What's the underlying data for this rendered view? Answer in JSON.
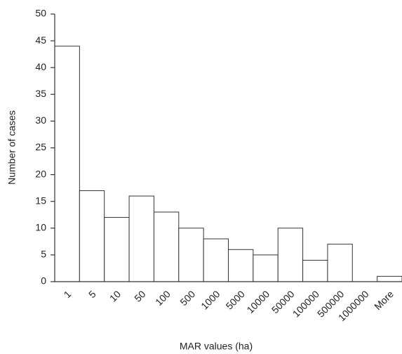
{
  "chart_data": {
    "type": "bar",
    "categories": [
      "1",
      "5",
      "10",
      "50",
      "100",
      "500",
      "1000",
      "5000",
      "10000",
      "50000",
      "100000",
      "500000",
      "1000000",
      "More"
    ],
    "values": [
      44,
      17,
      12,
      16,
      13,
      10,
      8,
      6,
      5,
      10,
      4,
      7,
      0,
      1
    ],
    "color": "#ffffff",
    "x_label": "MAR values (ha)",
    "y_label": "Number of cases",
    "ylim": [
      0,
      50
    ],
    "yticks": [
      0,
      5,
      10,
      15,
      20,
      25,
      30,
      35,
      40,
      45,
      50
    ],
    "grid": false
  }
}
